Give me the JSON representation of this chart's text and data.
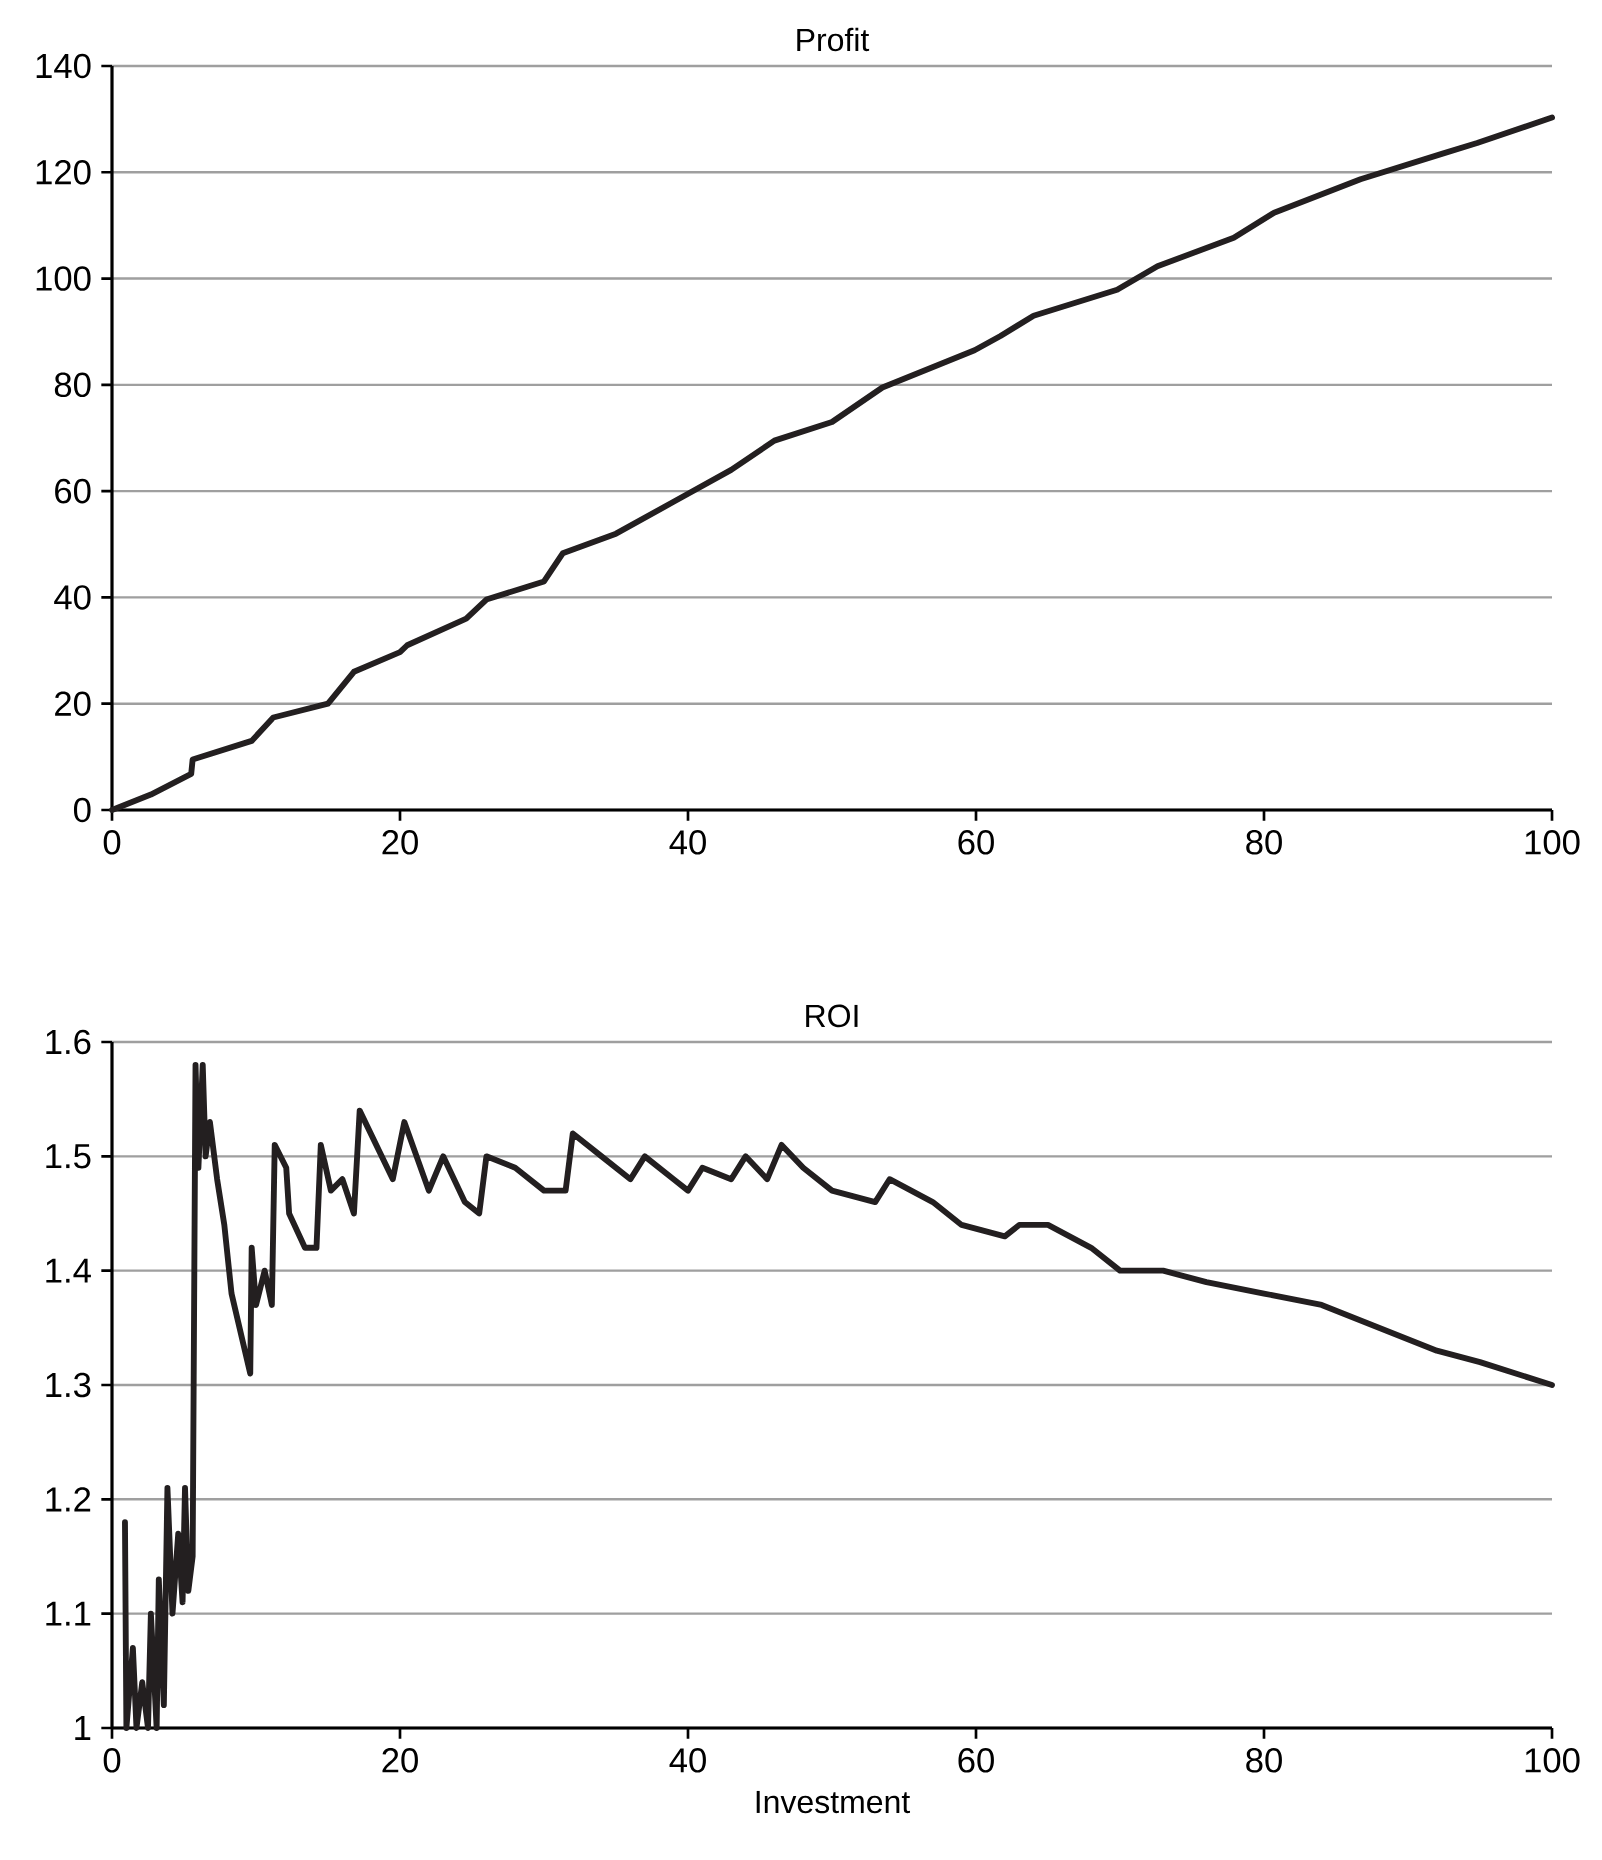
{
  "chart_data": [
    {
      "type": "line",
      "title": "Profit",
      "xlim": [
        0,
        100
      ],
      "xticks": [
        0,
        20,
        40,
        60,
        80,
        100
      ],
      "ylim": [
        0,
        140
      ],
      "yticks": [
        0,
        20,
        40,
        60,
        80,
        100,
        120,
        140
      ],
      "grid": "y",
      "series": [
        {
          "color": "#231f20",
          "x": [
            0,
            2.7,
            5.5,
            5.6,
            9.7,
            11.2,
            15,
            16.8,
            20,
            20.5,
            24.6,
            26,
            30,
            31.3,
            35,
            39,
            43,
            46,
            50,
            53.5,
            59.9,
            61.7,
            64,
            69.8,
            72.6,
            77.9,
            80.7,
            86.7,
            92.4,
            94.8,
            100
          ],
          "values": [
            0,
            2.9,
            6.8,
            9.5,
            13,
            17.4,
            20,
            26,
            29.7,
            31,
            36,
            39.6,
            43,
            48.3,
            52,
            58,
            64,
            69.5,
            73,
            79.5,
            86.5,
            89.2,
            93,
            97.9,
            102.3,
            107.7,
            112.4,
            118.7,
            123.5,
            125.5,
            130.3
          ]
        }
      ]
    },
    {
      "type": "line",
      "title": "ROI",
      "xlabel": "Investment",
      "xlim": [
        0,
        100
      ],
      "xticks": [
        0,
        20,
        40,
        60,
        80,
        100
      ],
      "ylim": [
        1,
        1.6
      ],
      "yticks": [
        1,
        1.1,
        1.2,
        1.3,
        1.4,
        1.5,
        1.6
      ],
      "grid": "y",
      "series": [
        {
          "color": "#231f20",
          "x": [
            0.9,
            1.0,
            1.45,
            1.7,
            2.1,
            2.5,
            2.7,
            3.1,
            3.25,
            3.6,
            3.85,
            4.2,
            4.6,
            4.9,
            5.07,
            5.3,
            5.6,
            5.8,
            6.0,
            6.3,
            6.5,
            6.8,
            7.3,
            7.8,
            8.3,
            9.6,
            9.7,
            10.0,
            10.6,
            11.1,
            11.3,
            12.1,
            12.3,
            13.4,
            14.2,
            14.5,
            15.2,
            16.0,
            16.8,
            17.2,
            19.5,
            20.3,
            22,
            23,
            24.5,
            25.5,
            26,
            28,
            30,
            31.5,
            32,
            34,
            36,
            37,
            39,
            40,
            41,
            43,
            44,
            45.5,
            46.5,
            48,
            50,
            53,
            54,
            57,
            59,
            62,
            63,
            65,
            68,
            70,
            73,
            76,
            80,
            84,
            88,
            92,
            95,
            100
          ],
          "values": [
            1.18,
            1.0,
            1.07,
            1.0,
            1.04,
            1.0,
            1.1,
            1.0,
            1.13,
            1.02,
            1.21,
            1.1,
            1.17,
            1.11,
            1.21,
            1.12,
            1.15,
            1.58,
            1.49,
            1.58,
            1.5,
            1.53,
            1.48,
            1.44,
            1.38,
            1.31,
            1.42,
            1.37,
            1.4,
            1.37,
            1.51,
            1.49,
            1.45,
            1.42,
            1.42,
            1.51,
            1.47,
            1.48,
            1.45,
            1.54,
            1.48,
            1.53,
            1.47,
            1.5,
            1.46,
            1.45,
            1.5,
            1.49,
            1.47,
            1.47,
            1.52,
            1.5,
            1.48,
            1.5,
            1.48,
            1.47,
            1.49,
            1.48,
            1.5,
            1.48,
            1.51,
            1.49,
            1.47,
            1.46,
            1.48,
            1.46,
            1.44,
            1.43,
            1.44,
            1.44,
            1.42,
            1.4,
            1.4,
            1.39,
            1.38,
            1.37,
            1.35,
            1.33,
            1.32,
            1.3
          ]
        }
      ]
    }
  ]
}
